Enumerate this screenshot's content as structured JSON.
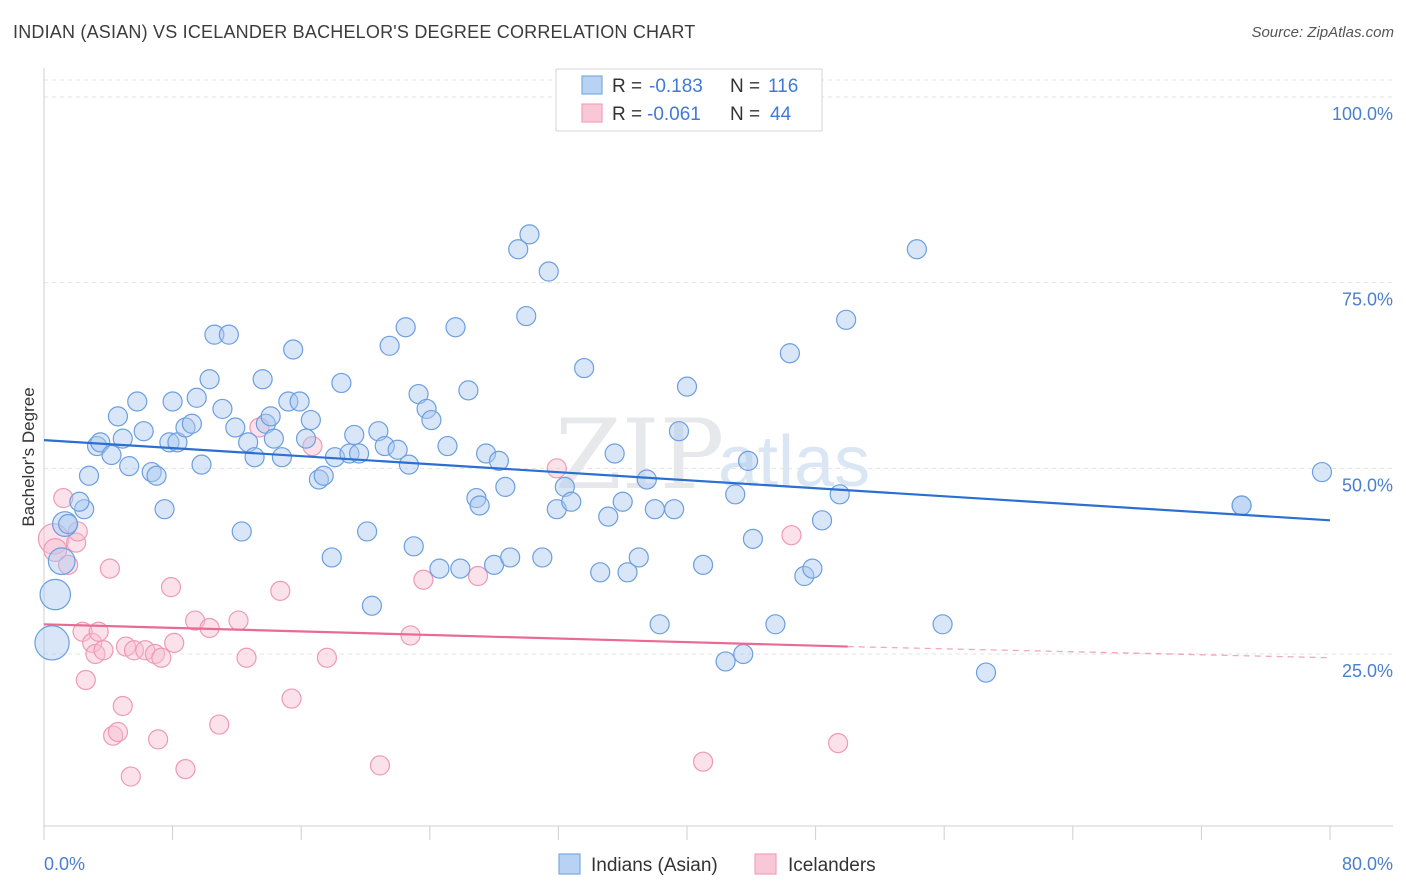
{
  "title": "INDIAN (ASIAN) VS ICELANDER BACHELOR'S DEGREE CORRELATION CHART",
  "source": "Source: ZipAtlas.com",
  "watermark": {
    "zip": "ZIP",
    "atlas": "atlas"
  },
  "colors": {
    "blue": "#7aaae4",
    "blue_line": "#2b6fd2",
    "pink": "#f2a1ba",
    "pink_line": "#e86a95",
    "label": "#4a7fd0"
  },
  "legend": {
    "rows": [
      {
        "r_label": "R =",
        "r_value": "-0.183",
        "n_label": "N =",
        "n_value": "116"
      },
      {
        "r_label": "R =",
        "r_value": "-0.061",
        "n_label": "N =",
        "n_value": "44"
      }
    ]
  },
  "bottom_legend": [
    "Indians (Asian)",
    "Icelanders"
  ],
  "chart_data": {
    "type": "scatter",
    "title": "INDIAN (ASIAN) VS ICELANDER BACHELOR'S DEGREE CORRELATION CHART",
    "xlabel": "",
    "ylabel": "Bachelor's Degree",
    "xlim": [
      0,
      80
    ],
    "ylim": [
      0,
      105
    ],
    "x_tick_labels": [
      "0.0%",
      "80.0%"
    ],
    "y_tick_labels": [
      "25.0%",
      "50.0%",
      "75.0%",
      "100.0%"
    ],
    "y_ticks": [
      25,
      50,
      75,
      100
    ],
    "series": [
      {
        "name": "Indians (Asian)",
        "trend": {
          "x0": 0,
          "y0": 53.8,
          "x1": 80,
          "y1": 43.0
        },
        "points": [
          [
            0.5,
            26.5,
            1.8
          ],
          [
            0.7,
            33,
            1.6
          ],
          [
            1.1,
            37.5,
            1.4
          ],
          [
            1.3,
            42.5,
            1.3
          ],
          [
            2.5,
            44.5,
            1
          ],
          [
            2.2,
            45.5,
            1
          ],
          [
            2.8,
            49,
            1
          ],
          [
            3.3,
            53,
            1
          ],
          [
            3.5,
            53.5,
            1
          ],
          [
            4.2,
            51.8,
            1
          ],
          [
            4.6,
            57,
            1
          ],
          [
            4.9,
            54,
            1
          ],
          [
            5.3,
            50.3,
            1
          ],
          [
            5.8,
            59,
            1
          ],
          [
            6.2,
            55,
            1
          ],
          [
            6.7,
            49.5,
            1
          ],
          [
            7.0,
            49,
            1
          ],
          [
            7.5,
            44.5,
            1
          ],
          [
            7.8,
            53.5,
            1
          ],
          [
            8.0,
            59,
            1
          ],
          [
            8.3,
            53.5,
            1
          ],
          [
            8.8,
            55.5,
            1
          ],
          [
            9.2,
            56,
            1
          ],
          [
            9.5,
            59.5,
            1
          ],
          [
            9.8,
            50.5,
            1
          ],
          [
            10.3,
            62,
            1
          ],
          [
            10.6,
            68,
            1
          ],
          [
            11.1,
            58,
            1
          ],
          [
            11.5,
            68,
            1
          ],
          [
            11.9,
            55.5,
            1
          ],
          [
            12.3,
            41.5,
            1
          ],
          [
            12.7,
            53.5,
            1
          ],
          [
            13.1,
            51.5,
            1
          ],
          [
            13.6,
            62,
            1
          ],
          [
            13.8,
            56,
            1
          ],
          [
            14.1,
            57,
            1
          ],
          [
            14.3,
            54,
            1
          ],
          [
            14.8,
            51.5,
            1
          ],
          [
            15.2,
            59,
            1
          ],
          [
            15.5,
            66,
            1
          ],
          [
            15.9,
            59,
            1
          ],
          [
            16.3,
            54,
            1
          ],
          [
            16.6,
            56.5,
            1
          ],
          [
            17.1,
            48.5,
            1
          ],
          [
            17.4,
            49,
            1
          ],
          [
            17.9,
            38,
            1
          ],
          [
            18.1,
            51.5,
            1
          ],
          [
            18.5,
            61.5,
            1
          ],
          [
            19.0,
            52,
            1
          ],
          [
            19.3,
            54.5,
            1
          ],
          [
            19.6,
            52,
            1
          ],
          [
            20.1,
            41.5,
            1
          ],
          [
            20.4,
            31.5,
            1
          ],
          [
            20.8,
            55,
            1
          ],
          [
            21.2,
            53,
            1
          ],
          [
            21.5,
            66.5,
            1
          ],
          [
            22.0,
            52.5,
            1
          ],
          [
            22.5,
            69,
            1
          ],
          [
            22.7,
            50.5,
            1
          ],
          [
            23.0,
            39.5,
            1
          ],
          [
            23.3,
            60,
            1
          ],
          [
            23.8,
            58,
            1
          ],
          [
            24.1,
            56.5,
            1
          ],
          [
            24.6,
            36.5,
            1
          ],
          [
            25.1,
            53,
            1
          ],
          [
            25.6,
            69,
            1
          ],
          [
            25.9,
            36.5,
            1
          ],
          [
            26.4,
            60.5,
            1
          ],
          [
            26.9,
            46,
            1
          ],
          [
            27.1,
            45,
            1
          ],
          [
            27.5,
            52,
            1
          ],
          [
            28.0,
            37,
            1
          ],
          [
            28.3,
            51,
            1
          ],
          [
            28.7,
            47.5,
            1
          ],
          [
            29.0,
            38,
            1
          ],
          [
            29.5,
            79.5,
            1
          ],
          [
            30.0,
            70.5,
            1
          ],
          [
            30.2,
            81.5,
            1
          ],
          [
            31.0,
            38,
            1
          ],
          [
            31.4,
            76.5,
            1
          ],
          [
            31.9,
            44.5,
            1
          ],
          [
            32.4,
            47.5,
            1
          ],
          [
            32.8,
            45.5,
            1
          ],
          [
            33.6,
            63.5,
            1
          ],
          [
            34.6,
            36,
            1
          ],
          [
            35.1,
            43.5,
            1
          ],
          [
            35.5,
            52,
            1
          ],
          [
            36.0,
            45.5,
            1
          ],
          [
            36.3,
            36,
            1
          ],
          [
            37.0,
            38,
            1
          ],
          [
            37.5,
            48.5,
            1
          ],
          [
            38.0,
            44.5,
            1
          ],
          [
            38.3,
            29,
            1
          ],
          [
            39.2,
            44.5,
            1
          ],
          [
            39.5,
            55,
            1
          ],
          [
            40.0,
            61,
            1
          ],
          [
            41.0,
            37,
            1
          ],
          [
            42.4,
            24,
            1
          ],
          [
            43.0,
            46.5,
            1
          ],
          [
            43.5,
            25,
            1
          ],
          [
            43.8,
            51,
            1
          ],
          [
            45.5,
            29,
            1
          ],
          [
            46.4,
            65.5,
            1
          ],
          [
            47.3,
            35.5,
            1
          ],
          [
            47.8,
            36.5,
            1
          ],
          [
            48.4,
            43,
            1
          ],
          [
            49.5,
            46.5,
            1
          ],
          [
            49.9,
            70,
            1
          ],
          [
            54.3,
            79.5,
            1
          ],
          [
            55.9,
            29,
            1
          ],
          [
            58.6,
            22.5,
            1
          ],
          [
            74.5,
            45,
            1
          ],
          [
            74.5,
            45,
            1
          ],
          [
            79.5,
            49.5,
            1
          ],
          [
            1.5,
            42.5,
            1
          ],
          [
            44.1,
            40.5,
            1
          ]
        ]
      },
      {
        "name": "Icelanders",
        "trend": {
          "x0": 0,
          "y0": 29.0,
          "x1": 50,
          "y1": 26.0,
          "dash_to_x": 80,
          "dash_to_y": 24.5
        },
        "points": [
          [
            0.6,
            40.5,
            1.6
          ],
          [
            0.7,
            39,
            1.2
          ],
          [
            1.2,
            46,
            1
          ],
          [
            1.5,
            37,
            1
          ],
          [
            2.0,
            40,
            1
          ],
          [
            2.1,
            41.5,
            1
          ],
          [
            2.4,
            28,
            1
          ],
          [
            2.6,
            21.5,
            1
          ],
          [
            3.0,
            26.5,
            1
          ],
          [
            3.2,
            25,
            1
          ],
          [
            3.4,
            28,
            1
          ],
          [
            3.7,
            25.5,
            1
          ],
          [
            4.1,
            36.5,
            1
          ],
          [
            4.3,
            14,
            1
          ],
          [
            4.6,
            14.5,
            1
          ],
          [
            4.9,
            18,
            1
          ],
          [
            5.1,
            26,
            1
          ],
          [
            5.4,
            8.5,
            1
          ],
          [
            5.6,
            25.5,
            1
          ],
          [
            6.3,
            25.5,
            1
          ],
          [
            6.9,
            25,
            1
          ],
          [
            7.1,
            13.5,
            1
          ],
          [
            7.3,
            24.5,
            1
          ],
          [
            7.9,
            34,
            1
          ],
          [
            8.1,
            26.5,
            1
          ],
          [
            8.8,
            9.5,
            1
          ],
          [
            9.4,
            29.5,
            1
          ],
          [
            10.3,
            28.5,
            1
          ],
          [
            10.9,
            15.5,
            1
          ],
          [
            12.1,
            29.5,
            1
          ],
          [
            12.6,
            24.5,
            1
          ],
          [
            13.4,
            55.5,
            1
          ],
          [
            14.7,
            33.5,
            1
          ],
          [
            15.4,
            19,
            1
          ],
          [
            16.7,
            53,
            1
          ],
          [
            17.6,
            24.5,
            1
          ],
          [
            20.9,
            10,
            1
          ],
          [
            22.8,
            27.5,
            1
          ],
          [
            23.6,
            35,
            1
          ],
          [
            27.0,
            35.5,
            1
          ],
          [
            31.9,
            50,
            1
          ],
          [
            41.0,
            10.5,
            1
          ],
          [
            46.5,
            41,
            1
          ],
          [
            49.4,
            13,
            1
          ]
        ]
      }
    ]
  }
}
